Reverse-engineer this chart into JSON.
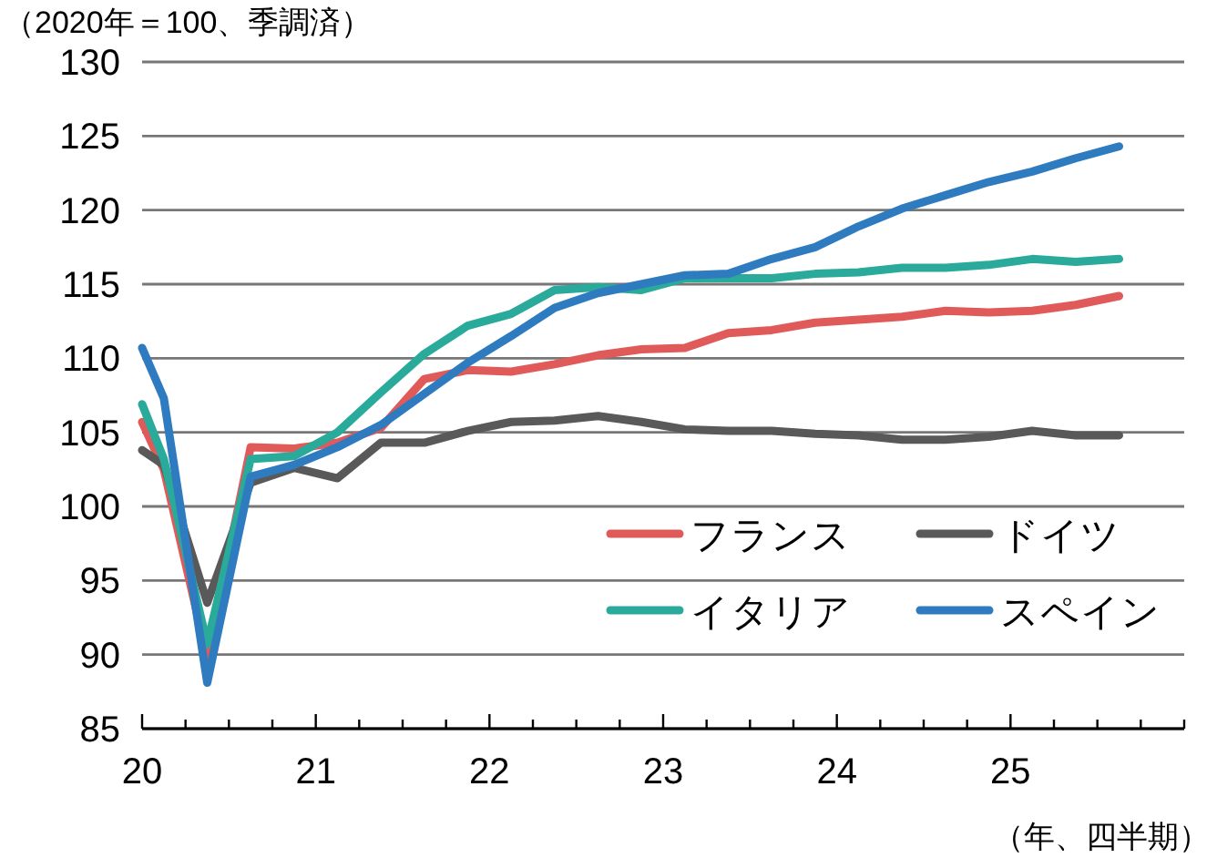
{
  "chart_data": {
    "type": "line",
    "ylabel": "（2020年＝100、季調済）",
    "xlabel": "（年、四半期）",
    "x": [
      2020,
      2020.125,
      2020.375,
      2020.625,
      2020.875,
      2021.125,
      2021.375,
      2021.625,
      2021.875,
      2022.125,
      2022.375,
      2022.625,
      2022.875,
      2023.125,
      2023.375,
      2023.625,
      2023.875,
      2024.125,
      2024.375,
      2024.625,
      2024.875,
      2025.125,
      2025.375,
      2025.625
    ],
    "series": [
      {
        "name": "フランス",
        "color": "#e05a5a",
        "values": [
          105.7,
          102.5,
          89.8,
          104.0,
          103.9,
          104.3,
          105.3,
          108.6,
          109.2,
          109.1,
          109.6,
          110.2,
          110.6,
          110.7,
          111.7,
          111.9,
          112.4,
          112.6,
          112.8,
          113.2,
          113.1,
          113.2,
          113.6,
          114.2
        ]
      },
      {
        "name": "ドイツ",
        "color": "#595959",
        "values": [
          103.8,
          102.8,
          93.5,
          101.6,
          102.6,
          101.9,
          104.3,
          104.3,
          105.1,
          105.7,
          105.8,
          106.1,
          105.7,
          105.2,
          105.1,
          105.1,
          104.9,
          104.8,
          104.5,
          104.5,
          104.7,
          105.1,
          104.8,
          104.8
        ]
      },
      {
        "name": "イタリア",
        "color": "#2aaa9a",
        "values": [
          106.9,
          103.2,
          90.7,
          103.2,
          103.4,
          105.0,
          107.7,
          110.3,
          112.2,
          113.0,
          114.6,
          114.8,
          114.6,
          115.4,
          115.4,
          115.4,
          115.7,
          115.8,
          116.1,
          116.1,
          116.3,
          116.7,
          116.5,
          116.7
        ]
      },
      {
        "name": "スペイン",
        "color": "#2e7bc0",
        "values": [
          110.7,
          107.3,
          88.1,
          102.0,
          102.8,
          104.0,
          105.5,
          107.6,
          109.7,
          111.5,
          113.4,
          114.4,
          115.0,
          115.6,
          115.7,
          116.7,
          117.5,
          118.9,
          120.1,
          121.0,
          121.9,
          122.6,
          123.5,
          124.3
        ]
      }
    ],
    "xlim": [
      2020,
      2026
    ],
    "xticks": [
      {
        "value": 2020,
        "label": "20"
      },
      {
        "value": 2020.25,
        "label": null
      },
      {
        "value": 2020.5,
        "label": null
      },
      {
        "value": 2020.75,
        "label": null
      },
      {
        "value": 2021,
        "label": "21"
      },
      {
        "value": 2021.25,
        "label": null
      },
      {
        "value": 2021.5,
        "label": null
      },
      {
        "value": 2021.75,
        "label": null
      },
      {
        "value": 2022,
        "label": "22"
      },
      {
        "value": 2022.25,
        "label": null
      },
      {
        "value": 2022.5,
        "label": null
      },
      {
        "value": 2022.75,
        "label": null
      },
      {
        "value": 2023,
        "label": "23"
      },
      {
        "value": 2023.25,
        "label": null
      },
      {
        "value": 2023.5,
        "label": null
      },
      {
        "value": 2023.75,
        "label": null
      },
      {
        "value": 2024,
        "label": "24"
      },
      {
        "value": 2024.25,
        "label": null
      },
      {
        "value": 2024.5,
        "label": null
      },
      {
        "value": 2024.75,
        "label": null
      },
      {
        "value": 2025,
        "label": "25"
      },
      {
        "value": 2025.25,
        "label": null
      },
      {
        "value": 2025.5,
        "label": null
      },
      {
        "value": 2025.75,
        "label": null
      },
      {
        "value": 2026,
        "label": null
      }
    ],
    "ylim": [
      85,
      130
    ],
    "yticks": [
      85,
      90,
      95,
      100,
      105,
      110,
      115,
      120,
      125,
      130
    ],
    "grid": "y",
    "legend": "bottom right",
    "marker": "none",
    "line_style": "solid"
  }
}
